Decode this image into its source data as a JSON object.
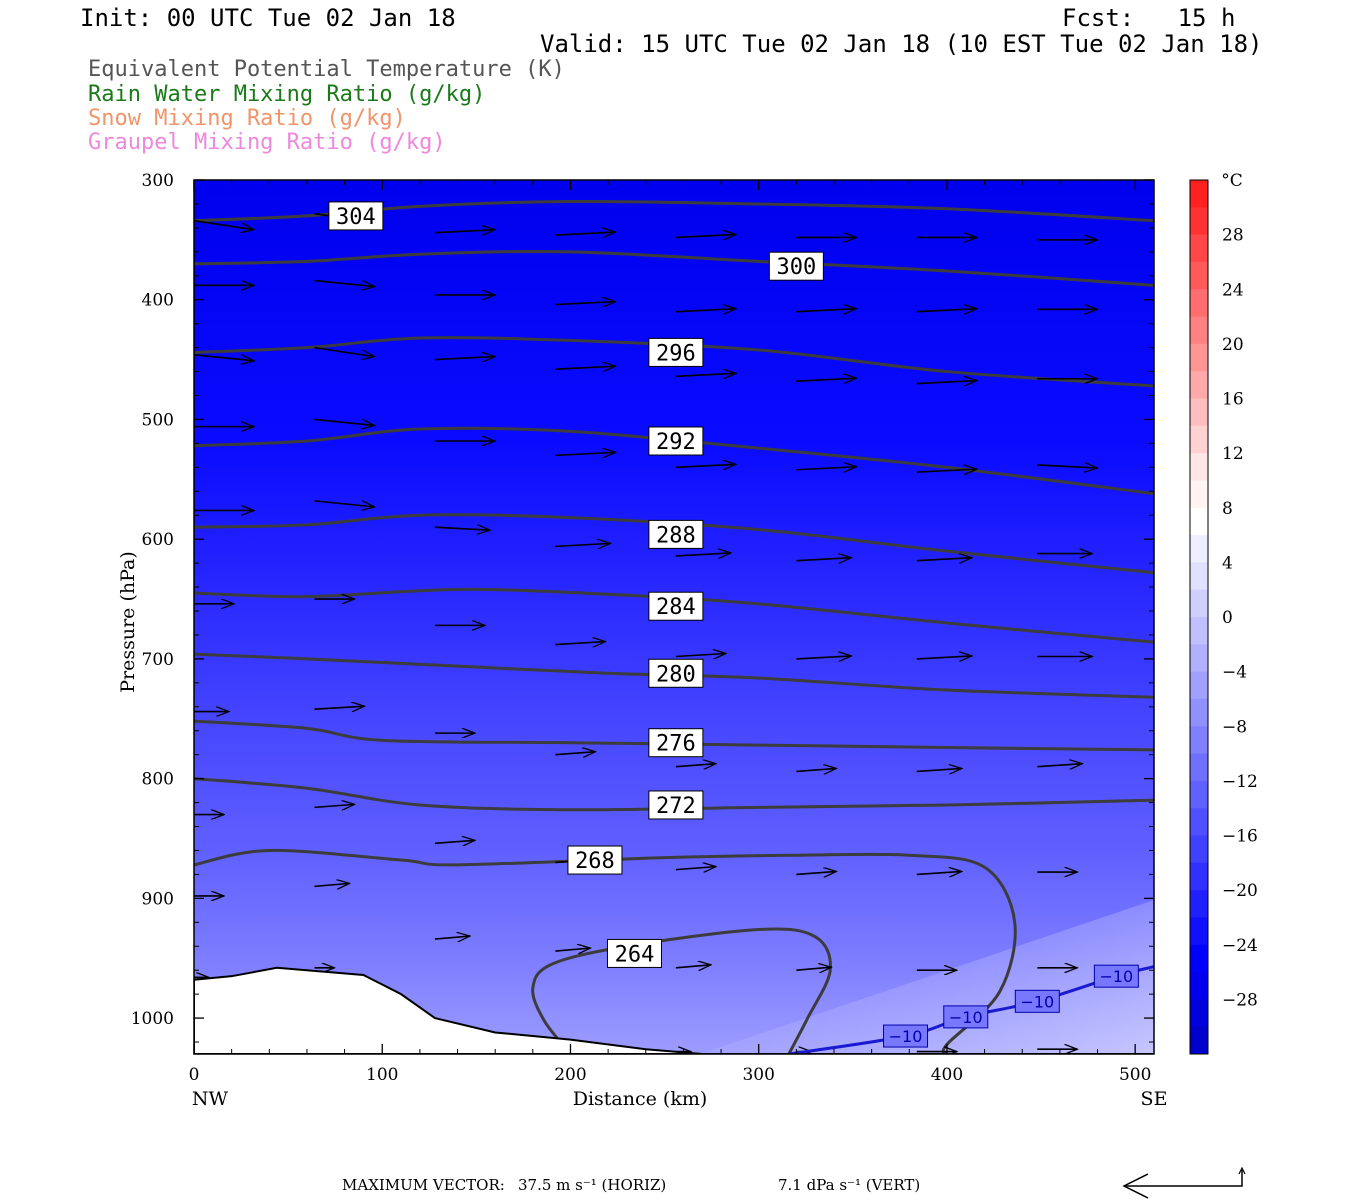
{
  "header": {
    "init": "Init: 00 UTC Tue 02 Jan 18",
    "fcst": "Fcst:   15 h",
    "valid": "Valid: 15 UTC Tue 02 Jan 18 (10 EST Tue 02 Jan 18)",
    "fields": [
      {
        "label": "Equivalent Potential Temperature (K)",
        "color": "#555555"
      },
      {
        "label": "Rain Water Mixing Ratio (g/kg)",
        "color": "#1a7a1a"
      },
      {
        "label": "Snow Mixing Ratio (g/kg)",
        "color": "#f0956a"
      },
      {
        "label": "Graupel Mixing Ratio (g/kg)",
        "color": "#ee88dd"
      }
    ]
  },
  "chart_data": {
    "type": "contour",
    "xlabel": "Distance (km)",
    "ylabel": "Pressure (hPa)",
    "x_end_labels": {
      "left": "NW",
      "right": "SE"
    },
    "x_ticks": [
      0,
      100,
      200,
      300,
      400,
      500
    ],
    "y_ticks": [
      300,
      400,
      500,
      600,
      700,
      800,
      900,
      1000
    ],
    "xlim": [
      0,
      510
    ],
    "ylim": [
      1030,
      300
    ],
    "colorbar": {
      "unit": "°C",
      "labels": [
        28,
        24,
        20,
        16,
        12,
        8,
        4,
        0,
        -4,
        -8,
        -12,
        -16,
        -20,
        -24,
        -28
      ],
      "levels": [
        32,
        30,
        28,
        26,
        24,
        22,
        20,
        18,
        16,
        14,
        12,
        10,
        8,
        6,
        4,
        2,
        0,
        -2,
        -4,
        -6,
        -8,
        -10,
        -12,
        -14,
        -16,
        -18,
        -20,
        -22,
        -24,
        -26,
        -28,
        -30,
        -32
      ],
      "colors": [
        "#ff2020",
        "#ff3333",
        "#ff4747",
        "#ff5a5a",
        "#ff6e6e",
        "#ff8282",
        "#ff9696",
        "#ffaaaa",
        "#ffbebe",
        "#ffd2d2",
        "#ffe6e6",
        "#fff3f3",
        "#ffffff",
        "#eeeeff",
        "#e0e0ff",
        "#d0d0ff",
        "#c0c0ff",
        "#b0b0ff",
        "#a0a0ff",
        "#9090ff",
        "#8080ff",
        "#7070ff",
        "#6060ff",
        "#5050ff",
        "#4040ff",
        "#3030ff",
        "#2020ff",
        "#1010ff",
        "#0000ff",
        "#0000ee",
        "#0000dd",
        "#0000cc"
      ]
    },
    "theta_e_contours": [
      {
        "level": 304,
        "points": [
          [
            0,
            334
          ],
          [
            60,
            330
          ],
          [
            120,
            322
          ],
          [
            200,
            318
          ],
          [
            300,
            320
          ],
          [
            400,
            324
          ],
          [
            510,
            334
          ]
        ]
      },
      {
        "level": 300,
        "points": [
          [
            0,
            370
          ],
          [
            60,
            368
          ],
          [
            120,
            362
          ],
          [
            200,
            360
          ],
          [
            300,
            368
          ],
          [
            400,
            376
          ],
          [
            510,
            388
          ]
        ]
      },
      {
        "level": 296,
        "points": [
          [
            0,
            444
          ],
          [
            60,
            440
          ],
          [
            120,
            432
          ],
          [
            200,
            434
          ],
          [
            300,
            442
          ],
          [
            400,
            460
          ],
          [
            510,
            472
          ]
        ]
      },
      {
        "level": 292,
        "points": [
          [
            0,
            522
          ],
          [
            60,
            518
          ],
          [
            120,
            508
          ],
          [
            200,
            510
          ],
          [
            300,
            524
          ],
          [
            400,
            540
          ],
          [
            510,
            562
          ]
        ]
      },
      {
        "level": 288,
        "points": [
          [
            0,
            590
          ],
          [
            60,
            588
          ],
          [
            120,
            580
          ],
          [
            200,
            582
          ],
          [
            300,
            592
          ],
          [
            400,
            610
          ],
          [
            510,
            628
          ]
        ]
      },
      {
        "level": 284,
        "points": [
          [
            0,
            645
          ],
          [
            60,
            648
          ],
          [
            140,
            642
          ],
          [
            220,
            646
          ],
          [
            300,
            654
          ],
          [
            400,
            670
          ],
          [
            510,
            686
          ]
        ]
      },
      {
        "level": 280,
        "points": [
          [
            0,
            696
          ],
          [
            60,
            700
          ],
          [
            140,
            706
          ],
          [
            220,
            712
          ],
          [
            300,
            716
          ],
          [
            400,
            726
          ],
          [
            510,
            732
          ]
        ]
      },
      {
        "level": 276,
        "points": [
          [
            0,
            752
          ],
          [
            60,
            758
          ],
          [
            100,
            768
          ],
          [
            200,
            770
          ],
          [
            300,
            772
          ],
          [
            400,
            774
          ],
          [
            510,
            776
          ]
        ]
      },
      {
        "level": 272,
        "points": [
          [
            0,
            800
          ],
          [
            60,
            808
          ],
          [
            120,
            822
          ],
          [
            200,
            826
          ],
          [
            300,
            824
          ],
          [
            400,
            822
          ],
          [
            510,
            818
          ]
        ]
      },
      {
        "level": 268,
        "points": [
          [
            0,
            872
          ],
          [
            40,
            860
          ],
          [
            110,
            868
          ],
          [
            140,
            872
          ],
          [
            250,
            866
          ],
          [
            320,
            864
          ],
          [
            380,
            864
          ],
          [
            420,
            874
          ],
          [
            436,
            920
          ],
          [
            428,
            978
          ],
          [
            400,
            1022
          ],
          [
            400,
            1030
          ]
        ]
      },
      {
        "level": 264,
        "points": [
          [
            200,
            1030
          ],
          [
            186,
            1002
          ],
          [
            180,
            975
          ],
          [
            190,
            955
          ],
          [
            230,
            940
          ],
          [
            300,
            926
          ],
          [
            330,
            932
          ],
          [
            338,
            960
          ],
          [
            326,
            1000
          ],
          [
            316,
            1030
          ]
        ]
      }
    ],
    "temperature_labels": [
      {
        "x": 378,
        "p": 1015,
        "value": "−10"
      },
      {
        "x": 410,
        "p": 999,
        "value": "−10"
      },
      {
        "x": 448,
        "p": 986,
        "value": "−10"
      },
      {
        "x": 490,
        "p": 965,
        "value": "−10"
      }
    ],
    "wind_vectors": [
      {
        "x": 0,
        "p": 334,
        "u": 60,
        "w": 3
      },
      {
        "x": 64,
        "p": 328,
        "u": 60,
        "w": 3
      },
      {
        "x": 128,
        "p": 344,
        "u": 60,
        "w": -1
      },
      {
        "x": 192,
        "p": 346,
        "u": 60,
        "w": -1
      },
      {
        "x": 256,
        "p": 348,
        "u": 60,
        "w": -1
      },
      {
        "x": 320,
        "p": 348,
        "u": 60,
        "w": 0
      },
      {
        "x": 384,
        "p": 348,
        "u": 60,
        "w": 0
      },
      {
        "x": 448,
        "p": 350,
        "u": 60,
        "w": 0
      },
      {
        "x": 0,
        "p": 388,
        "u": 60,
        "w": 0
      },
      {
        "x": 64,
        "p": 384,
        "u": 60,
        "w": 2
      },
      {
        "x": 128,
        "p": 396,
        "u": 60,
        "w": 0
      },
      {
        "x": 192,
        "p": 404,
        "u": 60,
        "w": -1
      },
      {
        "x": 256,
        "p": 410,
        "u": 60,
        "w": -1
      },
      {
        "x": 320,
        "p": 410,
        "u": 60,
        "w": -1
      },
      {
        "x": 384,
        "p": 410,
        "u": 60,
        "w": -1
      },
      {
        "x": 448,
        "p": 408,
        "u": 60,
        "w": 0
      },
      {
        "x": 0,
        "p": 446,
        "u": 60,
        "w": 2
      },
      {
        "x": 64,
        "p": 440,
        "u": 60,
        "w": 3
      },
      {
        "x": 128,
        "p": 450,
        "u": 60,
        "w": -1
      },
      {
        "x": 192,
        "p": 458,
        "u": 60,
        "w": -1
      },
      {
        "x": 256,
        "p": 464,
        "u": 60,
        "w": -1
      },
      {
        "x": 320,
        "p": 468,
        "u": 60,
        "w": -1
      },
      {
        "x": 384,
        "p": 470,
        "u": 60,
        "w": -1
      },
      {
        "x": 448,
        "p": 466,
        "u": 60,
        "w": 0
      },
      {
        "x": 0,
        "p": 506,
        "u": 60,
        "w": 0
      },
      {
        "x": 64,
        "p": 500,
        "u": 60,
        "w": 2
      },
      {
        "x": 128,
        "p": 518,
        "u": 60,
        "w": 0
      },
      {
        "x": 192,
        "p": 530,
        "u": 60,
        "w": -1
      },
      {
        "x": 256,
        "p": 540,
        "u": 60,
        "w": -1
      },
      {
        "x": 320,
        "p": 542,
        "u": 60,
        "w": -1
      },
      {
        "x": 384,
        "p": 544,
        "u": 60,
        "w": -1
      },
      {
        "x": 448,
        "p": 538,
        "u": 60,
        "w": 1
      },
      {
        "x": 0,
        "p": 576,
        "u": 60,
        "w": 0
      },
      {
        "x": 64,
        "p": 568,
        "u": 60,
        "w": 2
      },
      {
        "x": 128,
        "p": 590,
        "u": 55,
        "w": 1
      },
      {
        "x": 192,
        "p": 606,
        "u": 55,
        "w": -1
      },
      {
        "x": 256,
        "p": 614,
        "u": 55,
        "w": -1
      },
      {
        "x": 320,
        "p": 618,
        "u": 55,
        "w": -1
      },
      {
        "x": 384,
        "p": 618,
        "u": 55,
        "w": -1
      },
      {
        "x": 448,
        "p": 612,
        "u": 55,
        "w": 0
      },
      {
        "x": 0,
        "p": 654,
        "u": 40,
        "w": 0
      },
      {
        "x": 64,
        "p": 650,
        "u": 40,
        "w": 0
      },
      {
        "x": 128,
        "p": 672,
        "u": 50,
        "w": 0
      },
      {
        "x": 192,
        "p": 688,
        "u": 50,
        "w": -1
      },
      {
        "x": 256,
        "p": 698,
        "u": 50,
        "w": -1
      },
      {
        "x": 320,
        "p": 700,
        "u": 55,
        "w": -1
      },
      {
        "x": 384,
        "p": 700,
        "u": 55,
        "w": -1
      },
      {
        "x": 448,
        "p": 698,
        "u": 55,
        "w": 0
      },
      {
        "x": 0,
        "p": 744,
        "u": 35,
        "w": 0
      },
      {
        "x": 64,
        "p": 742,
        "u": 50,
        "w": -1
      },
      {
        "x": 128,
        "p": 762,
        "u": 40,
        "w": 0
      },
      {
        "x": 192,
        "p": 780,
        "u": 40,
        "w": -1
      },
      {
        "x": 256,
        "p": 790,
        "u": 40,
        "w": -1
      },
      {
        "x": 320,
        "p": 794,
        "u": 40,
        "w": -1
      },
      {
        "x": 384,
        "p": 794,
        "u": 45,
        "w": -1
      },
      {
        "x": 448,
        "p": 790,
        "u": 45,
        "w": -1
      },
      {
        "x": 0,
        "p": 830,
        "u": 30,
        "w": 0
      },
      {
        "x": 64,
        "p": 824,
        "u": 40,
        "w": -1
      },
      {
        "x": 128,
        "p": 854,
        "u": 40,
        "w": -1
      },
      {
        "x": 192,
        "p": 870,
        "u": 40,
        "w": -1
      },
      {
        "x": 256,
        "p": 876,
        "u": 40,
        "w": -1
      },
      {
        "x": 320,
        "p": 880,
        "u": 40,
        "w": -1
      },
      {
        "x": 384,
        "p": 880,
        "u": 45,
        "w": -1
      },
      {
        "x": 448,
        "p": 878,
        "u": 40,
        "w": 0
      },
      {
        "x": 0,
        "p": 898,
        "u": 30,
        "w": 0
      },
      {
        "x": 64,
        "p": 890,
        "u": 35,
        "w": -1
      },
      {
        "x": 128,
        "p": 934,
        "u": 35,
        "w": -1
      },
      {
        "x": 192,
        "p": 944,
        "u": 35,
        "w": -1
      },
      {
        "x": 256,
        "p": 958,
        "u": 35,
        "w": -1
      },
      {
        "x": 320,
        "p": 960,
        "u": 35,
        "w": -1
      },
      {
        "x": 384,
        "p": 960,
        "u": 40,
        "w": 0
      },
      {
        "x": 448,
        "p": 958,
        "u": 40,
        "w": 0
      },
      {
        "x": 0,
        "p": 966,
        "u": 15,
        "w": 0
      },
      {
        "x": 64,
        "p": 958,
        "u": 20,
        "w": 0
      },
      {
        "x": 128,
        "p": 1010,
        "u": 15,
        "w": -1
      },
      {
        "x": 256,
        "p": 1028,
        "u": 15,
        "w": 0
      },
      {
        "x": 320,
        "p": 1028,
        "u": 15,
        "w": 0
      },
      {
        "x": 384,
        "p": 1028,
        "u": 40,
        "w": 0
      },
      {
        "x": 448,
        "p": 1026,
        "u": 40,
        "w": 0
      }
    ],
    "terrain": [
      [
        0,
        968
      ],
      [
        20,
        965
      ],
      [
        44,
        958
      ],
      [
        90,
        964
      ],
      [
        110,
        980
      ],
      [
        128,
        1000
      ],
      [
        160,
        1012
      ],
      [
        200,
        1018
      ],
      [
        240,
        1026
      ],
      [
        270,
        1030
      ],
      [
        510,
        1030
      ]
    ]
  },
  "footer": {
    "max_vector_label": "MAXIMUM VECTOR:",
    "horiz": "37.5 m s⁻¹ (HORIZ)",
    "vert": "7.1 dPa s⁻¹ (VERT)"
  }
}
